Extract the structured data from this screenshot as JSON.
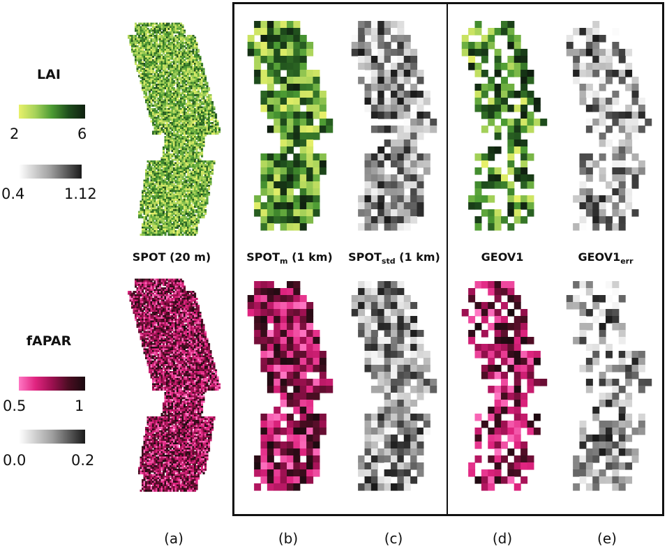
{
  "legend": {
    "lai": {
      "title": "LAI",
      "color_min": "2",
      "color_max": "6",
      "gray_min": "0.4",
      "gray_max": "1.12",
      "color_stops": [
        "#e8f16a",
        "#a6d25a",
        "#4b9a33",
        "#1e4d1c",
        "#0f1f0f"
      ],
      "gray_stops": [
        "#ffffff",
        "#a0a0a0",
        "#1a1a1a"
      ]
    },
    "fapar": {
      "title": "fAPAR",
      "color_min": "0.5",
      "color_max": "1",
      "gray_min": "0.0",
      "gray_max": "0.2",
      "color_stops": [
        "#ff77c4",
        "#e02480",
        "#9c1050",
        "#4a0d22",
        "#1a0a0f"
      ],
      "gray_stops": [
        "#ffffff",
        "#a0a0a0",
        "#1a1a1a"
      ]
    }
  },
  "columns": [
    {
      "id": "a",
      "label": "SPOT (20 m)",
      "sub": "",
      "suffix": "",
      "letter": "(a)"
    },
    {
      "id": "b",
      "label": "SPOT",
      "sub": "m",
      "suffix": " (1 km)",
      "letter": "(b)"
    },
    {
      "id": "c",
      "label": "SPOT",
      "sub": "std",
      "suffix": " (1 km)",
      "letter": "(c)"
    },
    {
      "id": "d",
      "label": "GEOV1",
      "sub": "",
      "suffix": "",
      "letter": "(d)"
    },
    {
      "id": "e",
      "label": "GEOV1",
      "sub": "err",
      "suffix": "",
      "letter": "(e)"
    }
  ]
}
